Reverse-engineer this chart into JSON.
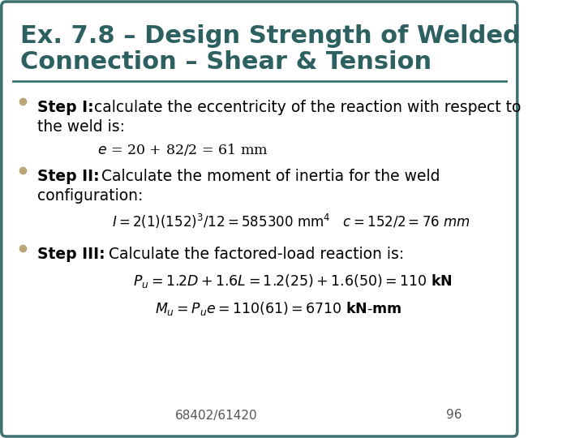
{
  "bg_color": "#ffffff",
  "border_color": "#3d7070",
  "title_color": "#2d6060",
  "title_line_color": "#3d7070",
  "body_fontsize": 13.5,
  "title_fontsize": 22,
  "bullet_color": "#b8a878",
  "text_color": "#000000",
  "footer_text": "68402/61420",
  "page_number": "96",
  "title_line1": "Ex. 7.8 – Design Strength of Welded",
  "title_line2": "Connection – Shear & Tension"
}
